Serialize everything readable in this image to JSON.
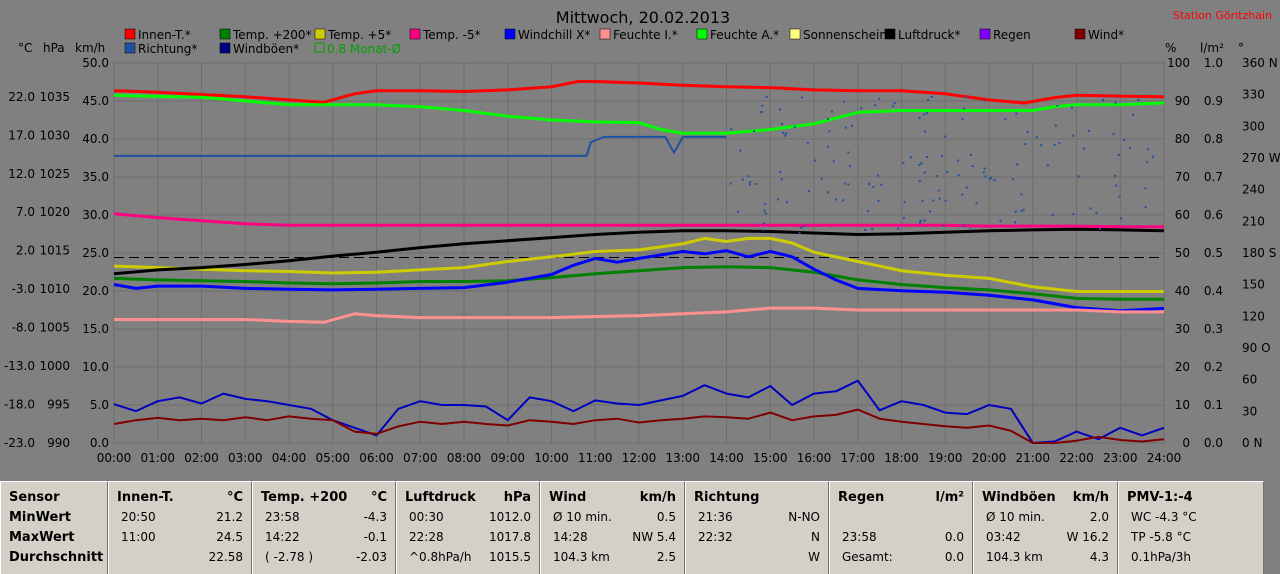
{
  "title": "Mittwoch, 20.02.2013",
  "station": "Station Göritzhain",
  "axis_units": {
    "temp": "°C",
    "hpa": "hPa",
    "kmh": "km/h",
    "pct": "%",
    "lm2": "l/m²",
    "deg": "°"
  },
  "legend": [
    {
      "label": "Innen-T.*",
      "color": "#ff0000"
    },
    {
      "label": "Temp. +200*",
      "color": "#008000"
    },
    {
      "label": "Temp. +5*",
      "color": "#cccc00"
    },
    {
      "label": "Temp. -5*",
      "color": "#ff0080"
    },
    {
      "label": "Windchill X*",
      "color": "#0000ff"
    },
    {
      "label": "Feuchte I.*",
      "color": "#ff9090"
    },
    {
      "label": "Feuchte A.*",
      "color": "#00ff00"
    },
    {
      "label": "Sonnenschein",
      "color": "#ffff80"
    },
    {
      "label": "Luftdruck*",
      "color": "#000000"
    },
    {
      "label": "Regen",
      "color": "#8000ff"
    },
    {
      "label": "Wind*",
      "color": "#800000"
    },
    {
      "label": "Richtung*",
      "color": "#2050a0"
    },
    {
      "label": "Windböen*",
      "color": "#000080"
    },
    {
      "label": "0.8 Monat-Ø",
      "color": "#00a000"
    }
  ],
  "chart_data": {
    "type": "line",
    "x_ticks": [
      "00:00",
      "01:00",
      "02:00",
      "03:00",
      "04:00",
      "05:00",
      "06:00",
      "07:00",
      "08:00",
      "09:00",
      "10:00",
      "11:00",
      "12:00",
      "13:00",
      "14:00",
      "15:00",
      "16:00",
      "17:00",
      "18:00",
      "19:00",
      "20:00",
      "21:00",
      "22:00",
      "23:00",
      "24:00"
    ],
    "axis_temp": {
      "ticks": [
        "22.0",
        "17.0",
        "12.0",
        "7.0",
        "2.0",
        "-3.0",
        "-8.0",
        "-13.0",
        "-18.0",
        "-23.0"
      ],
      "range": [
        -23,
        26.4
      ]
    },
    "axis_hpa": {
      "ticks": [
        "1035",
        "1030",
        "1025",
        "1020",
        "1015",
        "1010",
        "1005",
        "1000",
        "995",
        "990"
      ],
      "range": [
        990,
        1039.4
      ]
    },
    "axis_kmh": {
      "ticks": [
        "50.0",
        "45.0",
        "40.0",
        "35.0",
        "30.0",
        "25.0",
        "20.0",
        "15.0",
        "10.0",
        "5.0",
        "0.0"
      ],
      "range": [
        0,
        50
      ]
    },
    "axis_pct": {
      "ticks": [
        "100",
        "90",
        "80",
        "70",
        "60",
        "50",
        "40",
        "30",
        "20",
        "10",
        "0"
      ],
      "range": [
        0,
        100
      ]
    },
    "axis_lm2": {
      "ticks": [
        "1.0",
        "0.9",
        "0.8",
        "0.7",
        "0.6",
        "0.5",
        "0.4",
        "0.3",
        "0.2",
        "0.1",
        "0.0"
      ],
      "range": [
        0,
        1
      ]
    },
    "axis_deg": {
      "ticks": [
        "360 N",
        "330",
        "300",
        "270 W",
        "240",
        "210",
        "180 S",
        "150",
        "120",
        "90 O",
        "60",
        "30",
        "0 N"
      ],
      "range": [
        0,
        360
      ]
    },
    "month_avg_line_pct": 48.8,
    "series": [
      {
        "name": "Innen-T.*",
        "axis": "temp",
        "color": "#ff0000",
        "x": [
          0,
          1,
          2,
          3,
          4,
          4.8,
          5.5,
          6,
          7,
          8,
          9,
          10,
          10.6,
          11,
          12,
          13,
          14,
          15,
          16,
          17,
          18,
          19,
          20,
          20.8,
          21.5,
          22,
          23,
          24
        ],
        "y": [
          22.8,
          22.6,
          22.3,
          22.0,
          21.6,
          21.3,
          22.4,
          22.8,
          22.8,
          22.7,
          22.9,
          23.3,
          24.0,
          24.0,
          23.8,
          23.5,
          23.3,
          23.2,
          22.9,
          22.8,
          22.8,
          22.4,
          21.6,
          21.2,
          21.9,
          22.2,
          22.1,
          22.0
        ]
      },
      {
        "name": "Temp. +200*",
        "axis": "temp",
        "color": "#008000",
        "x": [
          0,
          1,
          2,
          3,
          4,
          5,
          6,
          7,
          8,
          9,
          10,
          11,
          12,
          13,
          14,
          15,
          16,
          17,
          18,
          19,
          20,
          21,
          22,
          23,
          24
        ],
        "y": [
          -1.6,
          -1.8,
          -1.9,
          -2.0,
          -2.2,
          -2.3,
          -2.2,
          -2.0,
          -2.0,
          -1.9,
          -1.5,
          -1.0,
          -0.6,
          -0.2,
          -0.1,
          -0.2,
          -0.8,
          -1.8,
          -2.4,
          -2.8,
          -3.1,
          -3.6,
          -4.2,
          -4.3,
          -4.3
        ]
      },
      {
        "name": "Temp. +5*",
        "axis": "temp",
        "color": "#cccc00",
        "x": [
          0,
          1,
          2,
          3,
          4,
          5,
          6,
          7,
          8,
          9,
          10,
          11,
          12,
          13,
          13.5,
          14,
          14.5,
          15,
          15.5,
          16,
          17,
          18,
          19,
          20,
          21,
          22,
          23,
          24
        ],
        "y": [
          0.0,
          -0.2,
          -0.4,
          -0.6,
          -0.7,
          -0.9,
          -0.8,
          -0.5,
          -0.2,
          0.6,
          1.2,
          1.9,
          2.1,
          2.9,
          3.6,
          3.2,
          3.6,
          3.6,
          3.0,
          1.8,
          0.6,
          -0.6,
          -1.2,
          -1.6,
          -2.7,
          -3.3,
          -3.3,
          -3.3
        ]
      },
      {
        "name": "Temp. -5*",
        "axis": "temp",
        "color": "#ff0080",
        "x": [
          0,
          1,
          2,
          3,
          4,
          5,
          6,
          7,
          8,
          9,
          10,
          11,
          12,
          13,
          14,
          15,
          16,
          17,
          18,
          19,
          20,
          21,
          22,
          23,
          24
        ],
        "y": [
          6.8,
          6.3,
          5.9,
          5.5,
          5.3,
          5.3,
          5.3,
          5.3,
          5.3,
          5.3,
          5.3,
          5.3,
          5.3,
          5.3,
          5.3,
          5.3,
          5.3,
          5.3,
          5.3,
          5.3,
          5.2,
          5.2,
          5.2,
          5.1,
          5.1
        ]
      },
      {
        "name": "Windchill X*",
        "axis": "temp",
        "color": "#0000ff",
        "x": [
          0,
          0.5,
          1,
          2,
          3,
          4,
          5,
          6,
          7,
          8,
          9,
          10,
          10.5,
          11,
          11.5,
          12,
          13,
          13.5,
          14,
          14.5,
          15,
          15.5,
          16,
          16.5,
          17,
          18,
          19,
          20,
          21,
          22,
          23,
          24
        ],
        "y": [
          -2.4,
          -2.9,
          -2.6,
          -2.6,
          -2.9,
          -3.0,
          -3.1,
          -3.0,
          -2.9,
          -2.8,
          -2.1,
          -1.1,
          0.1,
          1.0,
          0.5,
          1.0,
          1.9,
          1.6,
          2.0,
          1.2,
          1.9,
          1.2,
          -0.4,
          -1.8,
          -2.9,
          -3.2,
          -3.4,
          -3.8,
          -4.4,
          -5.4,
          -5.8,
          -5.5
        ]
      },
      {
        "name": "Feuchte I.*",
        "axis": "pct",
        "color": "#ff9090",
        "x": [
          0,
          1,
          2,
          3,
          4,
          4.8,
          5.5,
          6,
          7,
          8,
          9,
          10,
          11,
          12,
          13,
          14,
          15,
          16,
          17,
          18,
          19,
          20,
          21,
          22,
          23,
          24
        ],
        "y": [
          32.5,
          32.5,
          32.5,
          32.5,
          32.0,
          31.8,
          34.0,
          33.5,
          33.0,
          33.0,
          33.0,
          33.0,
          33.3,
          33.5,
          34.0,
          34.5,
          35.5,
          35.5,
          35.0,
          35.0,
          35.0,
          35.0,
          35.0,
          35.0,
          34.5,
          34.5
        ]
      },
      {
        "name": "Feuchte A.*",
        "axis": "pct",
        "color": "#00ff00",
        "x": [
          0,
          1,
          2,
          3,
          4,
          5,
          6,
          7,
          8,
          9,
          10,
          11,
          12,
          12.5,
          13,
          14,
          15,
          16,
          16.5,
          17,
          18,
          19,
          20,
          21,
          21.5,
          22,
          23,
          24
        ],
        "y": [
          91.5,
          91.2,
          91.0,
          90.0,
          89.0,
          89.0,
          89.0,
          88.5,
          87.5,
          86.0,
          85.0,
          84.5,
          84.3,
          82.5,
          81.5,
          81.5,
          82.5,
          84.0,
          85.5,
          87.0,
          87.5,
          87.5,
          87.5,
          87.5,
          88.5,
          89.0,
          89.0,
          89.5
        ]
      },
      {
        "name": "Luftdruck*",
        "axis": "hpa",
        "color": "#000000",
        "x": [
          0,
          1,
          2,
          3,
          4,
          5,
          6,
          7,
          8,
          9,
          10,
          11,
          12,
          13,
          14,
          15,
          16,
          17,
          18,
          19,
          20,
          21,
          22,
          23,
          24
        ],
        "y": [
          1012.0,
          1012.5,
          1012.8,
          1013.2,
          1013.7,
          1014.3,
          1014.8,
          1015.4,
          1015.9,
          1016.3,
          1016.7,
          1017.1,
          1017.4,
          1017.6,
          1017.6,
          1017.5,
          1017.3,
          1017.1,
          1017.2,
          1017.4,
          1017.6,
          1017.7,
          1017.8,
          1017.7,
          1017.6
        ]
      },
      {
        "name": "Windböen*",
        "axis": "kmh",
        "color": "#0000c0",
        "x": [
          0,
          0.5,
          1,
          1.5,
          2,
          2.5,
          3,
          3.5,
          4,
          4.5,
          5,
          5.5,
          6,
          6.5,
          7,
          7.5,
          8,
          8.5,
          9,
          9.5,
          10,
          10.5,
          11,
          11.5,
          12,
          12.5,
          13,
          13.5,
          14,
          14.5,
          15,
          15.5,
          16,
          16.5,
          17,
          17.5,
          18,
          18.5,
          19,
          19.5,
          20,
          20.5,
          21,
          21.5,
          22,
          22.5,
          23,
          23.5,
          24
        ],
        "y": [
          5.1,
          4.2,
          5.5,
          6.0,
          5.2,
          6.5,
          5.8,
          5.5,
          5.0,
          4.5,
          3.0,
          2.0,
          1.0,
          4.5,
          5.5,
          5.0,
          5.0,
          4.8,
          3.0,
          6.0,
          5.5,
          4.2,
          5.6,
          5.2,
          5.0,
          5.6,
          6.2,
          7.6,
          6.5,
          6.0,
          7.5,
          5.0,
          6.5,
          6.8,
          8.2,
          4.3,
          5.5,
          5.0,
          4.0,
          3.8,
          5.0,
          4.5,
          0.0,
          0.2,
          1.5,
          0.5,
          2.0,
          1.0,
          2.0
        ]
      },
      {
        "name": "Wind*",
        "axis": "kmh",
        "color": "#800000",
        "x": [
          0,
          0.5,
          1,
          1.5,
          2,
          2.5,
          3,
          3.5,
          4,
          4.5,
          5,
          5.5,
          6,
          6.5,
          7,
          7.5,
          8,
          8.5,
          9,
          9.5,
          10,
          10.5,
          11,
          11.5,
          12,
          12.5,
          13,
          13.5,
          14,
          14.5,
          15,
          15.5,
          16,
          16.5,
          17,
          17.5,
          18,
          18.5,
          19,
          19.5,
          20,
          20.5,
          21,
          21.5,
          22,
          22.5,
          23,
          23.5,
          24
        ],
        "y": [
          2.5,
          3.0,
          3.3,
          3.0,
          3.2,
          3.0,
          3.4,
          3.0,
          3.5,
          3.2,
          3.0,
          1.5,
          1.2,
          2.2,
          2.8,
          2.5,
          2.8,
          2.5,
          2.3,
          3.0,
          2.8,
          2.5,
          3.0,
          3.2,
          2.7,
          3.0,
          3.2,
          3.5,
          3.4,
          3.2,
          4.0,
          3.0,
          3.5,
          3.7,
          4.4,
          3.2,
          2.8,
          2.5,
          2.2,
          2.0,
          2.3,
          1.6,
          0.0,
          0.0,
          0.3,
          0.8,
          0.4,
          0.2,
          0.5
        ]
      },
      {
        "name": "Richtung*",
        "axis": "deg",
        "color": "#2050a0",
        "x": [
          0,
          10.8,
          10.9,
          11.2,
          12.6,
          12.8,
          13.0,
          14.0
        ],
        "y": [
          272,
          272,
          285,
          290,
          290,
          275,
          290,
          290
        ]
      }
    ],
    "xlabel": "",
    "ylabel": ""
  },
  "panels": [
    {
      "title": "Sensor",
      "unit": "",
      "rows": [
        [
          "MinWert",
          "",
          ""
        ],
        [
          "MaxWert",
          "",
          ""
        ],
        [
          "Durchschnitt",
          "",
          ""
        ]
      ]
    },
    {
      "title": "Innen-T.",
      "unit": "°C",
      "rows": [
        [
          "20:50",
          "",
          "21.2"
        ],
        [
          "11:00",
          "",
          "24.5"
        ],
        [
          "",
          "",
          "22.58"
        ]
      ]
    },
    {
      "title": "Temp. +200",
      "unit": "°C",
      "rows": [
        [
          "23:58",
          "",
          "-4.3"
        ],
        [
          "14:22",
          "",
          "-0.1"
        ],
        [
          "( -2.78 )",
          "",
          "-2.03"
        ]
      ]
    },
    {
      "title": "Luftdruck",
      "unit": "hPa",
      "rows": [
        [
          "00:30",
          "",
          "1012.0"
        ],
        [
          "22:28",
          "",
          "1017.8"
        ],
        [
          "^0.8hPa/h",
          "",
          "1015.5"
        ]
      ]
    },
    {
      "title": "Wind",
      "unit": "km/h",
      "rows": [
        [
          "Ø 10 min.",
          "",
          "0.5"
        ],
        [
          "14:28",
          "",
          "NW 5.4"
        ],
        [
          "104.3 km",
          "",
          "2.5"
        ]
      ]
    },
    {
      "title": "Richtung",
      "unit": "",
      "rows": [
        [
          "21:36",
          "",
          "N-NO"
        ],
        [
          "22:32",
          "",
          "N"
        ],
        [
          "",
          "",
          "W"
        ]
      ]
    },
    {
      "title": "Regen",
      "unit": "l/m²",
      "rows": [
        [
          "",
          "",
          ""
        ],
        [
          "23:58",
          "",
          "0.0"
        ],
        [
          "Gesamt:",
          "",
          "0.0"
        ]
      ]
    },
    {
      "title": "Windböen",
      "unit": "km/h",
      "rows": [
        [
          "Ø 10 min.",
          "",
          "2.0"
        ],
        [
          "03:42",
          "",
          "W 16.2"
        ],
        [
          "104.3 km",
          "",
          "4.3"
        ]
      ]
    },
    {
      "title": "PMV-1:-4",
      "unit": "",
      "rows": [
        [
          "WC -4.3 °C",
          "",
          ""
        ],
        [
          "TP -5.8 °C",
          "",
          ""
        ],
        [
          "0.1hPa/3h",
          "",
          ""
        ]
      ]
    }
  ]
}
